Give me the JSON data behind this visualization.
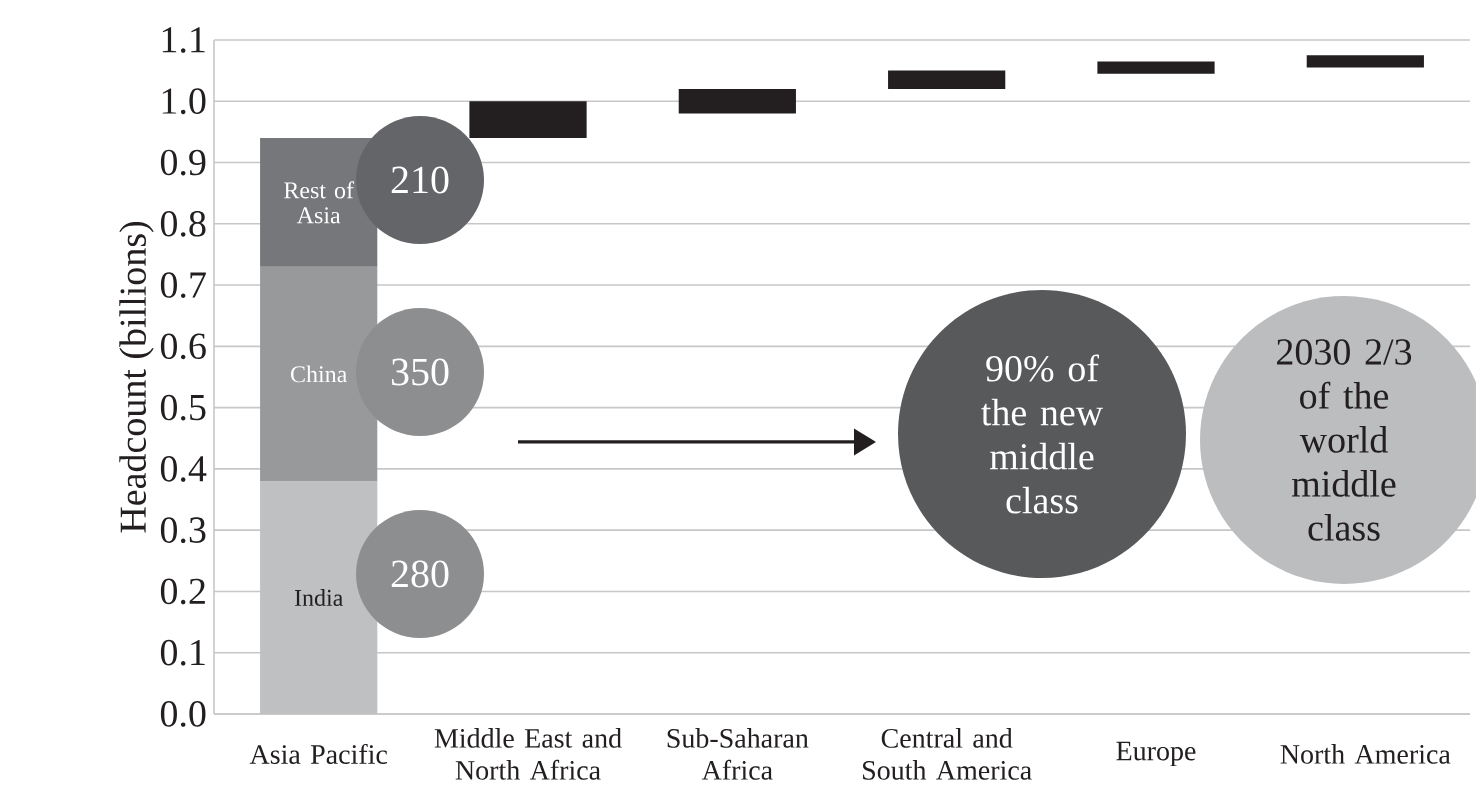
{
  "chart_data": {
    "type": "bar",
    "stacked": true,
    "ylabel": "Headcount (billions)",
    "categories": [
      "Asia Pacific",
      "Middle East and North Africa",
      "Sub-Saharan Africa",
      "Central and South America",
      "Europe",
      "North America"
    ],
    "series": [
      {
        "name": "India",
        "color": "#bfc0c2",
        "values": [
          0.38,
          null,
          null,
          null,
          null,
          null
        ]
      },
      {
        "name": "China",
        "color": "#98999b",
        "values": [
          0.35,
          null,
          null,
          null,
          null,
          null
        ]
      },
      {
        "name": "Rest of Asia",
        "color": "#76777a",
        "values": [
          0.21,
          null,
          null,
          null,
          null,
          null
        ]
      },
      {
        "color": "#231f20",
        "base": [
          null,
          0.94,
          0.98,
          1.02,
          1.045,
          1.055
        ],
        "values": [
          null,
          0.06,
          0.04,
          0.03,
          0.02,
          0.02
        ]
      }
    ],
    "ylim": [
      0,
      1.1
    ],
    "yticks": [
      {
        "value": 0,
        "label": "0.0"
      },
      0.1,
      0.2,
      0.3,
      0.4,
      0.5,
      0.6,
      0.7,
      0.8,
      0.9,
      {
        "value": 1,
        "label": "1.0"
      },
      1.1
    ],
    "grid": "y",
    "annotations": [
      "280",
      "350",
      "210",
      "90% of the new middle class",
      "2030 2/3 of the world middle class"
    ]
  }
}
